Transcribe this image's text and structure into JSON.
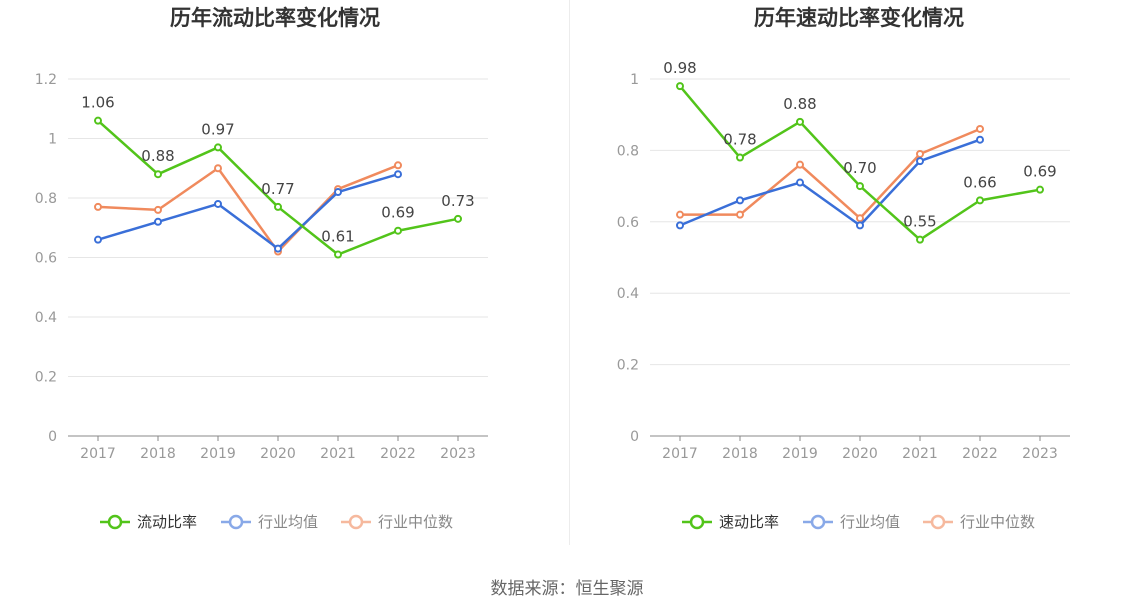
{
  "colors": {
    "main": "#52c41a",
    "avg": "#3a6fd8",
    "median": "#f08a5d",
    "grid": "#e6e6e6",
    "axis": "#888888",
    "tick_text": "#999999",
    "title_text": "#333333"
  },
  "chart_data": [
    {
      "type": "line",
      "title": "历年流动比率变化情况",
      "categories": [
        "2017",
        "2018",
        "2019",
        "2020",
        "2021",
        "2022",
        "2023"
      ],
      "ylim": [
        0,
        1.2
      ],
      "yticks": [
        "0",
        "0.2",
        "0.4",
        "0.6",
        "0.8",
        "1",
        "1.2"
      ],
      "grid": true,
      "legend_position": "bottom",
      "series": [
        {
          "name": "流动比率",
          "color_key": "main",
          "labeled": true,
          "values": [
            1.06,
            0.88,
            0.97,
            0.77,
            0.61,
            0.69,
            0.73
          ],
          "labels": [
            "1.06",
            "0.88",
            "0.97",
            "0.77",
            "0.61",
            "0.69",
            "0.73"
          ]
        },
        {
          "name": "行业均值",
          "color_key": "avg",
          "labeled": false,
          "values": [
            0.66,
            0.72,
            0.78,
            0.63,
            0.82,
            0.88,
            null
          ]
        },
        {
          "name": "行业中位数",
          "color_key": "median",
          "labeled": false,
          "values": [
            0.77,
            0.76,
            0.9,
            0.62,
            0.83,
            0.91,
            null
          ]
        }
      ]
    },
    {
      "type": "line",
      "title": "历年速动比率变化情况",
      "categories": [
        "2017",
        "2018",
        "2019",
        "2020",
        "2021",
        "2022",
        "2023"
      ],
      "ylim": [
        0,
        1
      ],
      "yticks": [
        "0",
        "0.2",
        "0.4",
        "0.6",
        "0.8",
        "1"
      ],
      "grid": true,
      "legend_position": "bottom",
      "series": [
        {
          "name": "速动比率",
          "color_key": "main",
          "labeled": true,
          "values": [
            0.98,
            0.78,
            0.88,
            0.7,
            0.55,
            0.66,
            0.69
          ],
          "labels": [
            "0.98",
            "0.78",
            "0.88",
            "0.70",
            "0.55",
            "0.66",
            "0.69"
          ]
        },
        {
          "name": "行业均值",
          "color_key": "avg",
          "labeled": false,
          "values": [
            0.59,
            0.66,
            0.71,
            0.59,
            0.77,
            0.83,
            null
          ]
        },
        {
          "name": "行业中位数",
          "color_key": "median",
          "labeled": false,
          "values": [
            0.62,
            0.62,
            0.76,
            0.61,
            0.79,
            0.86,
            null
          ]
        }
      ]
    }
  ],
  "footer": {
    "source": "数据来源：恒生聚源"
  }
}
